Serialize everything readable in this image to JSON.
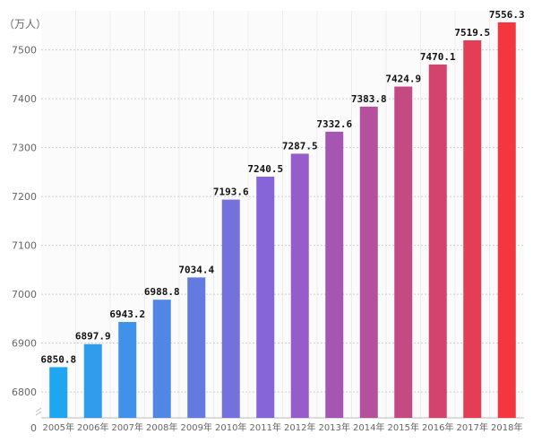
{
  "chart_data": {
    "type": "bar",
    "unit_label": "（万人）",
    "categories": [
      "2005年",
      "2006年",
      "2007年",
      "2008年",
      "2009年",
      "2010年",
      "2011年",
      "2012年",
      "2013年",
      "2014年",
      "2015年",
      "2016年",
      "2017年",
      "2018年"
    ],
    "values": [
      6850.8,
      6897.9,
      6943.2,
      6988.8,
      7034.4,
      7193.6,
      7240.5,
      7287.5,
      7332.6,
      7383.8,
      7424.9,
      7470.1,
      7519.5,
      7556.3
    ],
    "value_labels": [
      "6850.8",
      "6897.9",
      "6943.2",
      "6988.8",
      "7034.4",
      "7193.6",
      "7240.5",
      "7287.5",
      "7332.6",
      "7383.8",
      "7424.9",
      "7470.1",
      "7519.5",
      "7556.3"
    ],
    "y_ticks": [
      "6800",
      "6900",
      "7000",
      "7100",
      "7200",
      "7300",
      "7400",
      "7500"
    ],
    "y_baseline_label": "0",
    "ylim": [
      6780,
      7580
    ],
    "axis_break": true,
    "grid": true,
    "bar_color_start": "#1ea7f0",
    "bar_color_mid": "#8e5fd6",
    "bar_color_end": "#f2383e"
  }
}
